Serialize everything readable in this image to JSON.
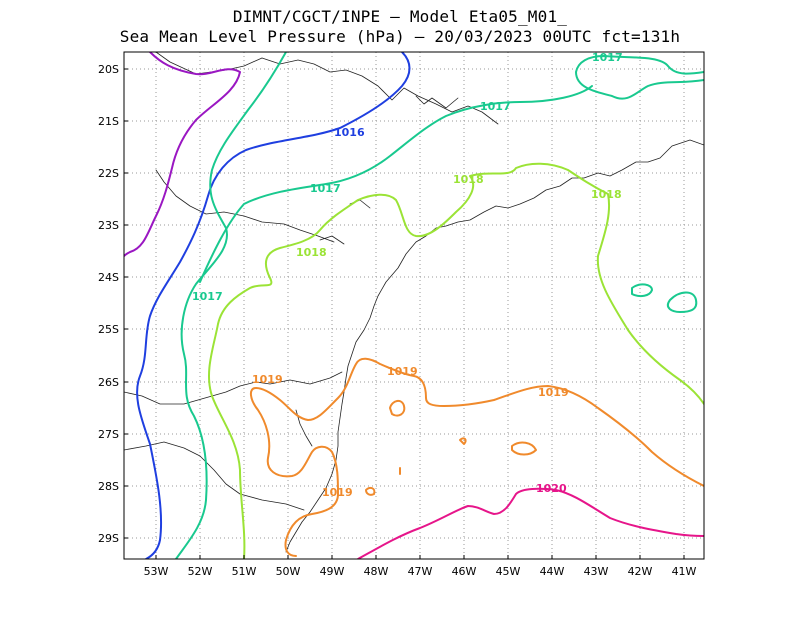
{
  "title": {
    "line1": "DIMNT/CGCT/INPE —  Model Eta05_M01_",
    "line2": "Sea Mean Level Pressure (hPa) — 20/03/2023 00UTC fct=131h"
  },
  "axes": {
    "lat_labels": [
      "20S",
      "21S",
      "22S",
      "23S",
      "24S",
      "25S",
      "26S",
      "27S",
      "28S",
      "29S"
    ],
    "lon_labels": [
      "53W",
      "52W",
      "51W",
      "50W",
      "49W",
      "48W",
      "47W",
      "46W",
      "45W",
      "44W",
      "43W",
      "42W",
      "41W"
    ]
  },
  "contours": [
    {
      "value": "1016",
      "color": "#1f3fe0"
    },
    {
      "value": "1017",
      "color": "#19c98f"
    },
    {
      "value": "1018",
      "color": "#9be336"
    },
    {
      "value": "1019",
      "color": "#f08a2c"
    },
    {
      "value": "1020",
      "color": "#e6158a"
    },
    {
      "value": "",
      "color": "#9a17c2"
    }
  ],
  "contour_labels": {
    "c1016": "1016",
    "c1017a": "1017",
    "c1017b": "1017",
    "c1017c": "1017",
    "c1017d": "1017",
    "c1018a": "1018",
    "c1018b": "1018",
    "c1018c": "1018",
    "c1019a": "1019",
    "c1019b": "1019",
    "c1019c": "1019",
    "c1019d": "1019",
    "c1020": "1020"
  }
}
